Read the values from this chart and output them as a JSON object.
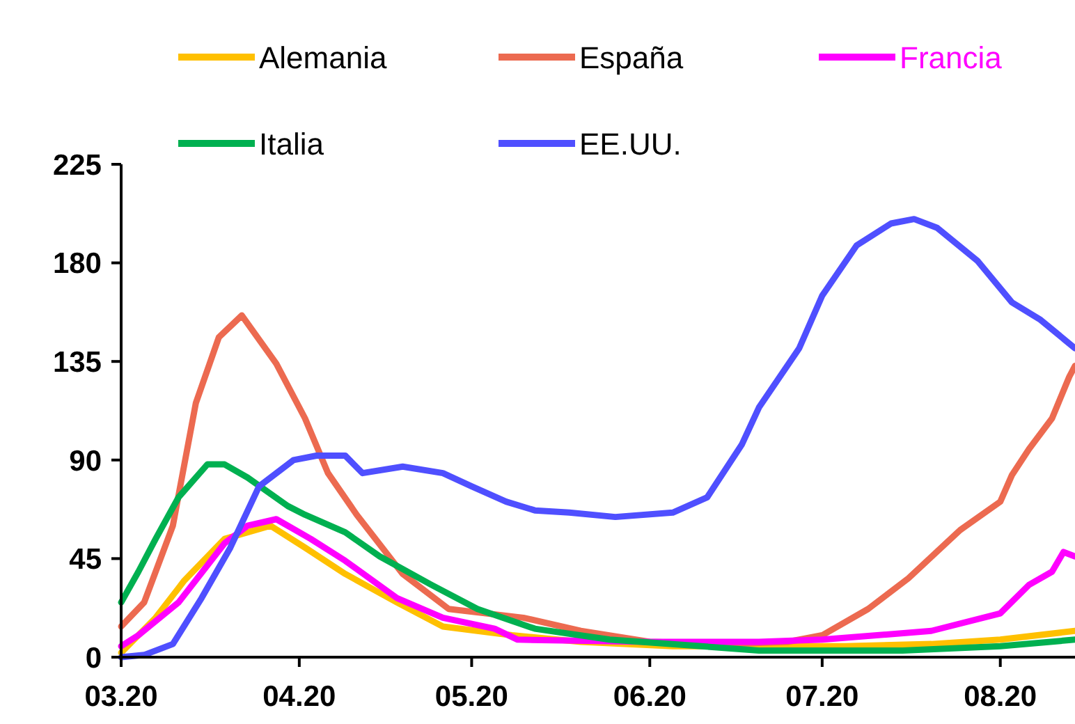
{
  "chart_data": {
    "type": "line",
    "legend": "top",
    "marker": "none",
    "line_style": "solid",
    "grid": false,
    "xlim": [
      "2020-03-01",
      "2020-08-14"
    ],
    "xticks": [
      {
        "value": "2020-03-01",
        "label": "03.20"
      },
      {
        "value": "2020-04-01",
        "label": "04.20"
      },
      {
        "value": "2020-05-01",
        "label": "05.20"
      },
      {
        "value": "2020-06-01",
        "label": "06.20"
      },
      {
        "value": "2020-07-01",
        "label": "07.20"
      },
      {
        "value": "2020-08-01",
        "label": "08.20"
      }
    ],
    "ylim": [
      0,
      225
    ],
    "yticks": [
      0,
      45,
      90,
      135,
      180,
      225
    ],
    "series": [
      {
        "name": "Alemania",
        "color": "#ffc000",
        "x": [
          "2020-03-01",
          "2020-03-07",
          "2020-03-12",
          "2020-03-19",
          "2020-03-27",
          "2020-04-02",
          "2020-04-09",
          "2020-04-18",
          "2020-04-26",
          "2020-05-08",
          "2020-05-20",
          "2020-06-05",
          "2020-06-20",
          "2020-07-05",
          "2020-07-20",
          "2020-08-01",
          "2020-08-14"
        ],
        "values": [
          2,
          18,
          35,
          54,
          60,
          50,
          38,
          25,
          14,
          10,
          7,
          5,
          5,
          5,
          6,
          8,
          12
        ]
      },
      {
        "name": "España",
        "color": "#ec6a50",
        "x": [
          "2020-03-01",
          "2020-03-05",
          "2020-03-10",
          "2020-03-14",
          "2020-03-18",
          "2020-03-22",
          "2020-03-28",
          "2020-04-02",
          "2020-04-06",
          "2020-04-11",
          "2020-04-19",
          "2020-04-27",
          "2020-05-10",
          "2020-05-20",
          "2020-06-01",
          "2020-06-15",
          "2020-06-25",
          "2020-07-01",
          "2020-07-09",
          "2020-07-16",
          "2020-07-25",
          "2020-08-01",
          "2020-08-03",
          "2020-08-06",
          "2020-08-10",
          "2020-08-13",
          "2020-08-14"
        ],
        "values": [
          14,
          25,
          60,
          116,
          146,
          156,
          134,
          109,
          84,
          65,
          38,
          22,
          18,
          12,
          7,
          6,
          7,
          10,
          22,
          36,
          58,
          71,
          83,
          95,
          109,
          128,
          133
        ]
      },
      {
        "name": "Francia",
        "color": "#ff00ff",
        "x": [
          "2020-03-01",
          "2020-03-04",
          "2020-03-11",
          "2020-03-19",
          "2020-03-23",
          "2020-03-28",
          "2020-04-03",
          "2020-04-09",
          "2020-04-18",
          "2020-04-26",
          "2020-05-05",
          "2020-05-09",
          "2020-06-01",
          "2020-06-20",
          "2020-07-01",
          "2020-07-20",
          "2020-08-01",
          "2020-08-06",
          "2020-08-10",
          "2020-08-12",
          "2020-08-14"
        ],
        "values": [
          5,
          10,
          25,
          52,
          60,
          63,
          54,
          44,
          27,
          18,
          13,
          8,
          7,
          7,
          8,
          12,
          20,
          33,
          39,
          48,
          46
        ]
      },
      {
        "name": "Italia",
        "color": "#00b050",
        "x": [
          "2020-03-01",
          "2020-03-04",
          "2020-03-07",
          "2020-03-11",
          "2020-03-16",
          "2020-03-19",
          "2020-03-23",
          "2020-03-30",
          "2020-04-02",
          "2020-04-09",
          "2020-04-15",
          "2020-04-24",
          "2020-05-02",
          "2020-05-12",
          "2020-05-25",
          "2020-06-10",
          "2020-06-20",
          "2020-07-01",
          "2020-07-15",
          "2020-08-01",
          "2020-08-14"
        ],
        "values": [
          25,
          39,
          54,
          73,
          88,
          88,
          82,
          69,
          65,
          57,
          46,
          33,
          22,
          13,
          8,
          5,
          3,
          3,
          3,
          5,
          8
        ]
      },
      {
        "name": "EE.UU.",
        "color": "#4f4fff",
        "x": [
          "2020-03-01",
          "2020-03-05",
          "2020-03-10",
          "2020-03-15",
          "2020-03-20",
          "2020-03-25",
          "2020-03-31",
          "2020-04-04",
          "2020-04-09",
          "2020-04-12",
          "2020-04-19",
          "2020-04-26",
          "2020-05-01",
          "2020-05-07",
          "2020-05-12",
          "2020-05-18",
          "2020-05-26",
          "2020-06-05",
          "2020-06-11",
          "2020-06-17",
          "2020-06-20",
          "2020-06-27",
          "2020-07-01",
          "2020-07-07",
          "2020-07-13",
          "2020-07-17",
          "2020-07-21",
          "2020-07-28",
          "2020-08-03",
          "2020-08-08",
          "2020-08-14"
        ],
        "values": [
          0,
          1,
          6,
          27,
          50,
          78,
          90,
          92,
          92,
          84,
          87,
          84,
          78,
          71,
          67,
          66,
          64,
          66,
          73,
          97,
          114,
          141,
          165,
          188,
          198,
          200,
          196,
          181,
          162,
          154,
          141
        ]
      }
    ]
  }
}
